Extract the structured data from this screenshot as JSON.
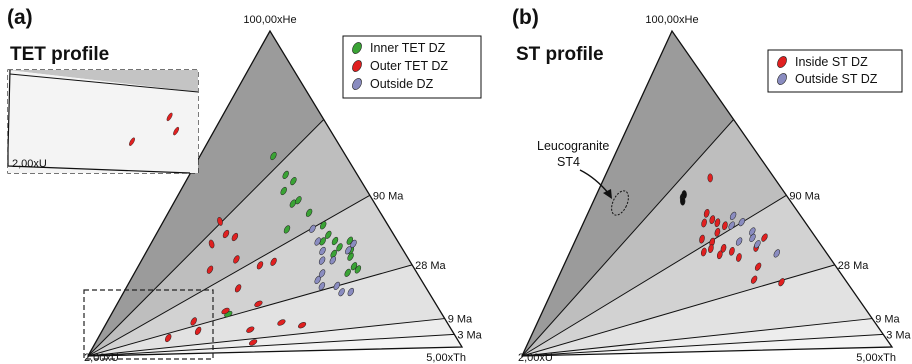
{
  "chart_data": [
    {
      "type": "ternary",
      "panel_label": "(a)",
      "title": "TET profile",
      "vertices": {
        "top": "100,00xHe",
        "left": "2,00xU",
        "right": "5,00xTh"
      },
      "isochrons": [
        {
          "label": "",
          "he_fraction": 0.72
        },
        {
          "label": "90 Ma",
          "he_fraction": 0.48
        },
        {
          "label": "28 Ma",
          "he_fraction": 0.26
        },
        {
          "label": "9 Ma",
          "he_fraction": 0.09
        },
        {
          "label": "3 Ma",
          "he_fraction": 0.04
        }
      ],
      "legend": {
        "position": "top-right",
        "entries": [
          {
            "name": "Inner TET DZ",
            "color": "#3aa335"
          },
          {
            "name": "Outer TET DZ",
            "color": "#e02020"
          },
          {
            "name": "Outside DZ",
            "color": "#8a8cc0"
          }
        ]
      },
      "inset": {
        "label": "2,00xU",
        "style": "dashed",
        "note": "zoom of lower-left corner"
      },
      "series": [
        {
          "name": "Inner TET DZ",
          "color": "#3aa335",
          "points": [
            [
              0.51,
              0.61,
              -30
            ],
            [
              0.58,
              0.55,
              -30
            ],
            [
              0.56,
              0.5,
              -30
            ],
            [
              0.62,
              0.53,
              -30
            ],
            [
              0.63,
              0.47,
              -30
            ],
            [
              0.6,
              0.46,
              -30
            ],
            [
              0.67,
              0.43,
              -30
            ],
            [
              0.72,
              0.39,
              -30
            ],
            [
              0.73,
              0.36,
              -30
            ],
            [
              0.75,
              0.34,
              -30
            ],
            [
              0.76,
              0.32,
              -30
            ],
            [
              0.7,
              0.34,
              -30
            ],
            [
              0.73,
              0.3,
              -30
            ],
            [
              0.79,
              0.29,
              -30
            ],
            [
              0.8,
              0.31,
              -30
            ],
            [
              0.81,
              0.34,
              -30
            ],
            [
              0.56,
              0.38,
              -30
            ],
            [
              0.76,
              0.24,
              -30
            ],
            [
              0.79,
              0.26,
              -30
            ],
            [
              0.8,
              0.25,
              -30
            ],
            [
              0.36,
              0.12,
              0
            ]
          ]
        },
        {
          "name": "Outer TET DZ",
          "color": "#e02020",
          "points": [
            [
              0.26,
              0.41,
              -75
            ],
            [
              0.25,
              0.34,
              -75
            ],
            [
              0.3,
              0.37,
              -30
            ],
            [
              0.34,
              0.36,
              -30
            ],
            [
              0.36,
              0.29,
              -30
            ],
            [
              0.45,
              0.27,
              -30
            ],
            [
              0.5,
              0.28,
              -30
            ],
            [
              0.27,
              0.26,
              -30
            ],
            [
              0.38,
              0.2,
              -30
            ],
            [
              0.45,
              0.15,
              0
            ],
            [
              0.35,
              0.13,
              0
            ],
            [
              0.43,
              0.07,
              0
            ],
            [
              0.52,
              0.09,
              0
            ],
            [
              0.58,
              0.08,
              0
            ],
            [
              0.26,
              0.1,
              -30
            ],
            [
              0.2,
              0.05,
              -30
            ],
            [
              0.28,
              0.07,
              -30
            ],
            [
              0.44,
              0.03,
              0
            ]
          ]
        },
        {
          "name": "Outside DZ",
          "color": "#8a8cc0",
          "points": [
            [
              0.67,
              0.38,
              -30
            ],
            [
              0.68,
              0.34,
              -30
            ],
            [
              0.69,
              0.31,
              -30
            ],
            [
              0.68,
              0.28,
              -30
            ],
            [
              0.72,
              0.28,
              -30
            ],
            [
              0.79,
              0.31,
              -30
            ],
            [
              0.82,
              0.33,
              -30
            ],
            [
              0.65,
              0.22,
              -30
            ],
            [
              0.66,
              0.2,
              -30
            ],
            [
              0.71,
              0.2,
              -30
            ],
            [
              0.72,
              0.18,
              -30
            ],
            [
              0.75,
              0.18,
              -30
            ],
            [
              0.67,
              0.24,
              -30
            ]
          ]
        }
      ]
    },
    {
      "type": "ternary",
      "panel_label": "(b)",
      "title": "ST profile",
      "vertices": {
        "top": "100,00xHe",
        "left": "2,00xU",
        "right": "5,00xTh"
      },
      "isochrons": [
        {
          "label": "",
          "he_fraction": 0.72
        },
        {
          "label": "90 Ma",
          "he_fraction": 0.48
        },
        {
          "label": "28 Ma",
          "he_fraction": 0.26
        },
        {
          "label": "9 Ma",
          "he_fraction": 0.09
        },
        {
          "label": "3 Ma",
          "he_fraction": 0.04
        }
      ],
      "legend": {
        "position": "top-right",
        "entries": [
          {
            "name": "Inside ST DZ",
            "color": "#e02020"
          },
          {
            "name": "Outside ST DZ",
            "color": "#8a8cc0"
          }
        ]
      },
      "annotation": {
        "text_line1": "Leucogranite",
        "text_line2": "ST4"
      },
      "series": [
        {
          "name": "Inside ST DZ",
          "color": "#e02020",
          "points": [
            [
              0.63,
              0.54,
              -60
            ],
            [
              0.57,
              0.43,
              -45
            ],
            [
              0.59,
              0.41,
              -45
            ],
            [
              0.55,
              0.4,
              -45
            ],
            [
              0.61,
              0.4,
              -45
            ],
            [
              0.6,
              0.37,
              -45
            ],
            [
              0.64,
              0.39,
              -45
            ],
            [
              0.53,
              0.35,
              -45
            ],
            [
              0.57,
              0.34,
              -45
            ],
            [
              0.61,
              0.32,
              -45
            ],
            [
              0.56,
              0.32,
              -45
            ],
            [
              0.53,
              0.31,
              -45
            ],
            [
              0.59,
              0.3,
              -45
            ],
            [
              0.64,
              0.31,
              -45
            ],
            [
              0.66,
              0.29,
              -45
            ],
            [
              0.74,
              0.32,
              -45
            ],
            [
              0.72,
              0.26,
              -30
            ],
            [
              0.69,
              0.22,
              -30
            ],
            [
              0.78,
              0.21,
              -30
            ],
            [
              0.79,
              0.35,
              -30
            ]
          ]
        },
        {
          "name": "Outside ST DZ",
          "color": "#8a8cc0",
          "points": [
            [
              0.69,
              0.42,
              -30
            ],
            [
              0.72,
              0.4,
              -30
            ],
            [
              0.75,
              0.37,
              -30
            ],
            [
              0.74,
              0.35,
              -30
            ],
            [
              0.75,
              0.33,
              -30
            ],
            [
              0.81,
              0.3,
              -30
            ],
            [
              0.67,
              0.39,
              -30
            ],
            [
              0.68,
              0.34,
              -30
            ]
          ]
        },
        {
          "name": "Leucogranite ST4",
          "color": "#111111",
          "points": [
            [
              0.46,
              0.48,
              -60
            ],
            [
              0.47,
              0.49,
              -60
            ],
            [
              0.46,
              0.47,
              -60
            ]
          ]
        }
      ]
    }
  ]
}
